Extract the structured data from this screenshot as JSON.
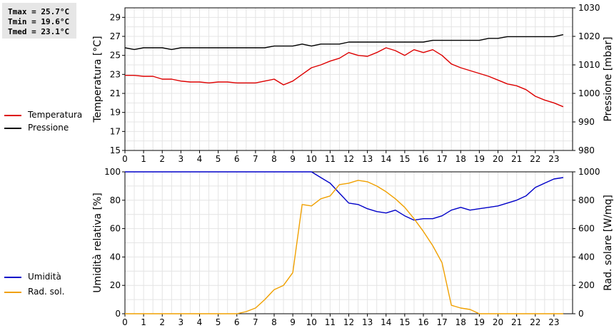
{
  "stats": {
    "tmax": "Tmax = 25.7°C",
    "tmin": "Tmin = 19.6°C",
    "tmed": "Tmed = 23.1°C"
  },
  "legend_top": [
    {
      "label": "Temperatura",
      "color": "#dd0000"
    },
    {
      "label": "Pressione",
      "color": "#000000"
    }
  ],
  "legend_bottom": [
    {
      "label": "Umidità",
      "color": "#0000c8"
    },
    {
      "label": "Rad. sol.",
      "color": "#f0a000"
    }
  ],
  "chart_data": [
    {
      "type": "line",
      "xlim": [
        0,
        24
      ],
      "xticks": [
        "0",
        "1",
        "2",
        "3",
        "4",
        "5",
        "6",
        "7",
        "8",
        "9",
        "10",
        "11",
        "12",
        "13",
        "14",
        "15",
        "16",
        "17",
        "18",
        "19",
        "20",
        "21",
        "22",
        "23"
      ],
      "ylabel": "Temperatura [°C]",
      "ylim": [
        15,
        30
      ],
      "yticks": [
        "15",
        "17",
        "19",
        "21",
        "23",
        "25",
        "27",
        "29"
      ],
      "y2label": "Pressione [mbar]",
      "y2lim": [
        980,
        1030
      ],
      "y2ticks": [
        "980",
        "990",
        "1000",
        "1010",
        "1020",
        "1030"
      ],
      "grid": true,
      "series": [
        {
          "name": "Temperatura",
          "color": "#dd0000",
          "axis": "left",
          "x": [
            0,
            0.5,
            1,
            1.5,
            2,
            2.5,
            3,
            3.5,
            4,
            4.5,
            5,
            5.5,
            6,
            6.5,
            7,
            7.5,
            8,
            8.5,
            9,
            9.5,
            10,
            10.5,
            11,
            11.5,
            12,
            12.5,
            13,
            13.5,
            14,
            14.5,
            15,
            15.5,
            16,
            16.5,
            17,
            17.5,
            18,
            18.5,
            19,
            19.5,
            20,
            20.5,
            21,
            21.5,
            22,
            22.5,
            23,
            23.5
          ],
          "values": [
            22.9,
            22.9,
            22.8,
            22.8,
            22.5,
            22.5,
            22.3,
            22.2,
            22.2,
            22.1,
            22.2,
            22.2,
            22.1,
            22.1,
            22.1,
            22.3,
            22.5,
            21.9,
            22.3,
            23.0,
            23.7,
            24.0,
            24.4,
            24.7,
            25.3,
            25.0,
            24.9,
            25.3,
            25.8,
            25.5,
            25.0,
            25.6,
            25.3,
            25.6,
            25.0,
            24.1,
            23.7,
            23.4,
            23.1,
            22.8,
            22.4,
            22.0,
            21.8,
            21.4,
            20.7,
            20.3,
            20.0,
            19.6
          ]
        },
        {
          "name": "Pressione",
          "color": "#000000",
          "axis": "right",
          "x": [
            0,
            0.5,
            1,
            1.5,
            2,
            2.5,
            3,
            3.5,
            4,
            4.5,
            5,
            5.5,
            6,
            6.5,
            7,
            7.5,
            8,
            8.5,
            9,
            9.5,
            10,
            10.5,
            11,
            11.5,
            12,
            12.5,
            13,
            13.5,
            14,
            14.5,
            15,
            15.5,
            16,
            16.5,
            17,
            17.5,
            18,
            18.5,
            19,
            19.5,
            20,
            20.5,
            21,
            21.5,
            22,
            22.5,
            23,
            23.5
          ],
          "values": [
            1016.0,
            1015.4,
            1016.0,
            1016.0,
            1016.0,
            1015.4,
            1016.0,
            1016.0,
            1016.0,
            1016.0,
            1016.0,
            1016.0,
            1016.0,
            1016.0,
            1016.0,
            1016.0,
            1016.6,
            1016.6,
            1016.6,
            1017.3,
            1016.6,
            1017.3,
            1017.3,
            1017.3,
            1018.0,
            1018.0,
            1018.0,
            1018.0,
            1018.0,
            1018.0,
            1018.0,
            1018.0,
            1018.0,
            1018.6,
            1018.6,
            1018.6,
            1018.6,
            1018.6,
            1018.6,
            1019.3,
            1019.3,
            1019.9,
            1019.9,
            1019.9,
            1019.9,
            1019.9,
            1019.9,
            1020.6
          ]
        }
      ]
    },
    {
      "type": "line",
      "xlim": [
        0,
        24
      ],
      "xticks": [
        "0",
        "1",
        "2",
        "3",
        "4",
        "5",
        "6",
        "7",
        "8",
        "9",
        "10",
        "11",
        "12",
        "13",
        "14",
        "15",
        "16",
        "17",
        "18",
        "19",
        "20",
        "21",
        "22",
        "23"
      ],
      "ylabel": "Umidità relativa [%]",
      "ylim": [
        0,
        100
      ],
      "yticks": [
        "0",
        "20",
        "40",
        "60",
        "80",
        "100"
      ],
      "y2label": "Rad. solare [W/mq]",
      "y2lim": [
        0,
        1000
      ],
      "y2ticks": [
        "0",
        "200",
        "400",
        "600",
        "800",
        "1000"
      ],
      "grid": true,
      "series": [
        {
          "name": "Umidità",
          "color": "#0000c8",
          "axis": "left",
          "x": [
            0,
            1,
            2,
            3,
            4,
            5,
            6,
            7,
            8,
            9,
            9.5,
            10,
            10.5,
            11,
            11.5,
            12,
            12.5,
            13,
            13.5,
            14,
            14.5,
            15,
            15.5,
            16,
            16.5,
            17,
            17.5,
            18,
            18.5,
            19,
            19.5,
            20,
            20.5,
            21,
            21.5,
            22,
            22.5,
            23,
            23.5
          ],
          "values": [
            100,
            100,
            100,
            100,
            100,
            100,
            100,
            100,
            100,
            100,
            100,
            100,
            96,
            92,
            85,
            78,
            77,
            74,
            72,
            71,
            73,
            69,
            66,
            67,
            67,
            69,
            73,
            75,
            73,
            74,
            75,
            76,
            78,
            80,
            83,
            89,
            92,
            95,
            96
          ]
        },
        {
          "name": "Rad. sol.",
          "color": "#f0a000",
          "axis": "right",
          "x": [
            0,
            1,
            2,
            3,
            4,
            5,
            6,
            6.5,
            7,
            7.5,
            8,
            8.5,
            9,
            9.5,
            10,
            10.5,
            11,
            11.5,
            12,
            12.5,
            13,
            13.5,
            14,
            14.5,
            15,
            15.5,
            16,
            16.5,
            17,
            17.5,
            18,
            18.5,
            19,
            20,
            21,
            22,
            23,
            23.5
          ],
          "values": [
            0,
            0,
            0,
            0,
            0,
            0,
            0,
            15,
            40,
            100,
            170,
            200,
            290,
            770,
            760,
            810,
            830,
            910,
            920,
            940,
            930,
            900,
            860,
            810,
            750,
            670,
            580,
            480,
            360,
            60,
            40,
            30,
            0,
            0,
            0,
            0,
            0,
            0
          ]
        }
      ]
    }
  ]
}
